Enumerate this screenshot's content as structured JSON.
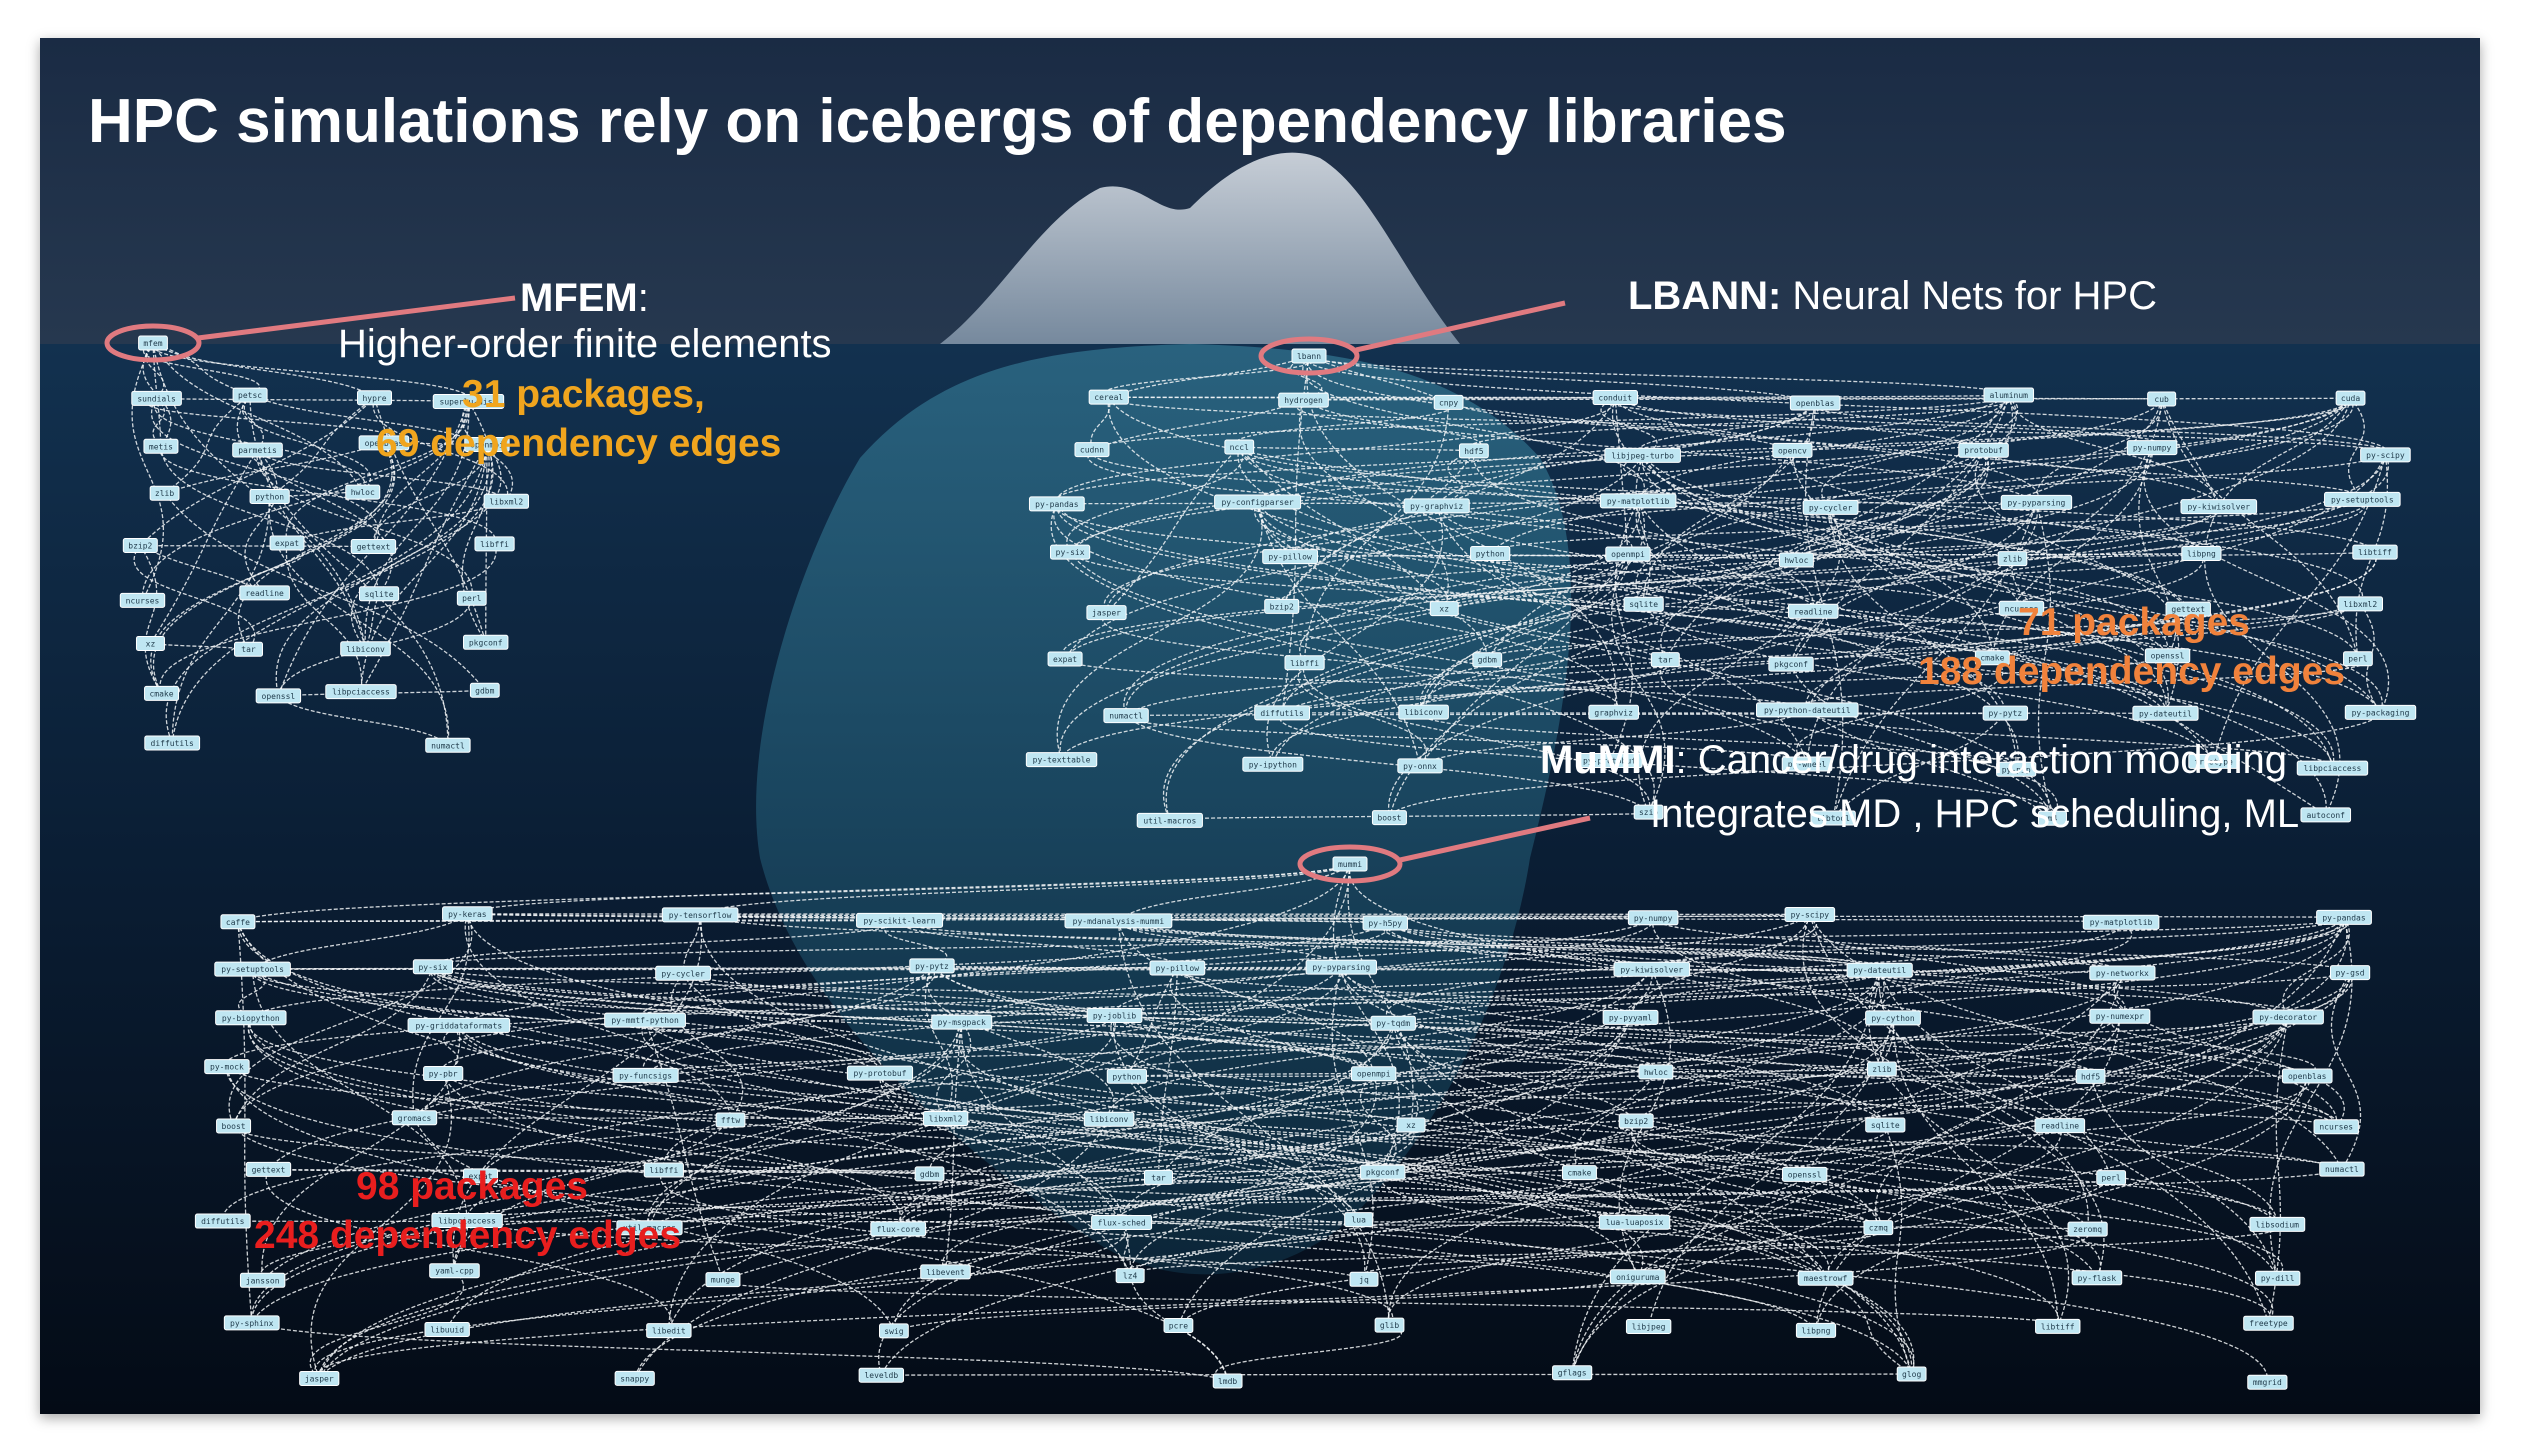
{
  "title": "HPC simulations rely on icebergs of dependency libraries",
  "colors": {
    "mfem_stats": "#f0a51e",
    "lbann_stats": "#f0823c",
    "mummi_stats": "#e81e1e",
    "callout": "#e07a80",
    "node_fill": "#bfe6f2"
  },
  "mfem": {
    "name": "MFEM",
    "colon": ":",
    "description": "Higher-order finite elements",
    "packages": "31 packages,",
    "edges": "69 dependency edges"
  },
  "lbann": {
    "name": "LBANN:",
    "description": " Neural Nets for HPC",
    "packages": "71 packages",
    "edges": "188 dependency edges"
  },
  "mummi": {
    "name": "MuMMI",
    "description": ": Cancer/drug interaction modeling",
    "description2": "Integrates MD , HPC scheduling, ML",
    "packages": "98 packages",
    "edges": "248 dependency edges"
  },
  "graphs": {
    "mfem_nodes": [
      "mfem",
      "sundials",
      "petsc",
      "hypre",
      "superlu-dist",
      "metis",
      "parmetis",
      "openblas",
      "openmpi",
      "zlib",
      "python",
      "hwloc",
      "libxml2",
      "bzip2",
      "expat",
      "gettext",
      "libffi",
      "ncurses",
      "readline",
      "sqlite",
      "perl",
      "xz",
      "tar",
      "libiconv",
      "pkgconf",
      "cmake",
      "openssl",
      "libpciaccess",
      "gdbm",
      "diffutils",
      "numactl"
    ],
    "lbann_nodes": [
      "lbann",
      "cereal",
      "hydrogen",
      "cnpy",
      "conduit",
      "openblas",
      "aluminum",
      "cub",
      "cuda",
      "cudnn",
      "nccl",
      "hdf5",
      "libjpeg-turbo",
      "opencv",
      "protobuf",
      "py-numpy",
      "py-scipy",
      "py-pandas",
      "py-configparser",
      "py-graphviz",
      "py-matplotlib",
      "py-cycler",
      "py-pyparsing",
      "py-kiwisolver",
      "py-setuptools",
      "py-six",
      "py-pillow",
      "python",
      "openmpi",
      "hwloc",
      "zlib",
      "libpng",
      "libtiff",
      "jasper",
      "bzip2",
      "xz",
      "sqlite",
      "readline",
      "ncurses",
      "gettext",
      "libxml2",
      "expat",
      "libffi",
      "gdbm",
      "tar",
      "pkgconf",
      "cmake",
      "openssl",
      "perl",
      "numactl",
      "diffutils",
      "libiconv",
      "graphviz",
      "py-python-dateutil",
      "py-pytz",
      "py-dateutil",
      "py-packaging",
      "py-texttable",
      "py-ipython",
      "py-onnx",
      "py-protobuf",
      "py-wheel",
      "py-pip",
      "freetype",
      "libpciaccess",
      "util-macros",
      "boost",
      "szip",
      "libtool",
      "m4",
      "autoconf"
    ],
    "mummi_nodes": [
      "mummi",
      "caffe",
      "py-keras",
      "py-tensorflow",
      "py-scikit-learn",
      "py-mdanalysis-mummi",
      "py-h5py",
      "py-numpy",
      "py-scipy",
      "py-matplotlib",
      "py-pandas",
      "py-setuptools",
      "py-six",
      "py-cycler",
      "py-pytz",
      "py-pillow",
      "py-pyparsing",
      "py-kiwisolver",
      "py-dateutil",
      "py-networkx",
      "py-gsd",
      "py-biopython",
      "py-griddataformats",
      "py-mmtf-python",
      "py-msgpack",
      "py-joblib",
      "py-tqdm",
      "py-pyyaml",
      "py-cython",
      "py-numexpr",
      "py-decorator",
      "py-mock",
      "py-pbr",
      "py-funcsigs",
      "py-protobuf",
      "python",
      "openmpi",
      "hwloc",
      "zlib",
      "hdf5",
      "openblas",
      "boost",
      "gromacs",
      "fftw",
      "libxml2",
      "libiconv",
      "xz",
      "bzip2",
      "sqlite",
      "readline",
      "ncurses",
      "gettext",
      "expat",
      "libffi",
      "gdbm",
      "tar",
      "pkgconf",
      "cmake",
      "openssl",
      "perl",
      "numactl",
      "diffutils",
      "libpciaccess",
      "util-macros",
      "flux-core",
      "flux-sched",
      "lua",
      "lua-luaposix",
      "czmq",
      "zeromq",
      "libsodium",
      "jansson",
      "yaml-cpp",
      "munge",
      "libevent",
      "lz4",
      "jq",
      "oniguruma",
      "maestrowf",
      "py-flask",
      "py-dill",
      "py-sphinx",
      "libuuid",
      "libedit",
      "swig",
      "pcre",
      "glib",
      "libjpeg",
      "libpng",
      "libtiff",
      "freetype",
      "jasper",
      "snappy",
      "leveldb",
      "lmdb",
      "gflags",
      "glog",
      "mmgrid"
    ]
  }
}
